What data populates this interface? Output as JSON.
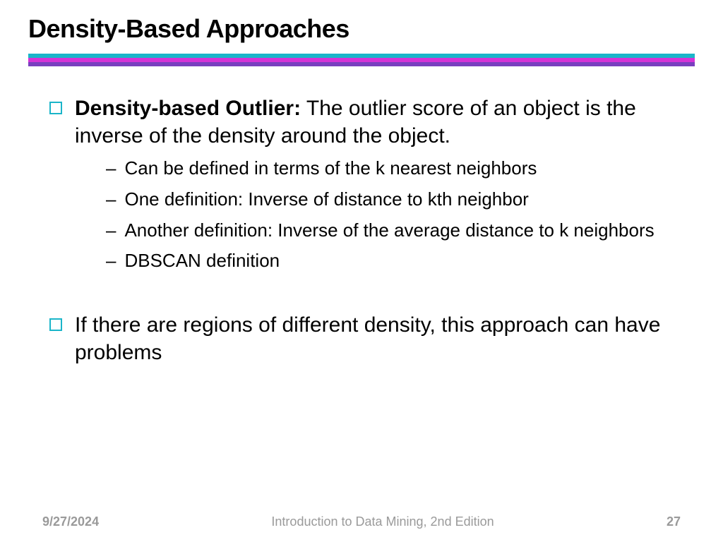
{
  "title": "Density-Based Approaches",
  "divider_colors": [
    "#1bb5c9",
    "#d633d6",
    "#7a3fbf"
  ],
  "body": {
    "item1": {
      "bold": "Density-based Outlier:",
      "rest": " The outlier score of an object is the inverse of the density around the object.",
      "sub": [
        "Can be defined in terms of the k nearest neighbors",
        "One definition: Inverse of distance to kth neighbor",
        "Another definition: Inverse of the average distance to k neighbors",
        "DBSCAN definition"
      ]
    },
    "item2": {
      "text": "If there are regions of different density, this approach can have problems"
    }
  },
  "footer": {
    "date": "9/27/2024",
    "source": "Introduction to Data Mining, 2nd Edition",
    "page": "27"
  },
  "style": {
    "title_fontsize": 36,
    "l1_fontsize": 30,
    "l2_fontsize": 26,
    "bullet_border_color": "#1bb5c9",
    "footer_color": "#9a9a9a",
    "background": "#ffffff"
  }
}
